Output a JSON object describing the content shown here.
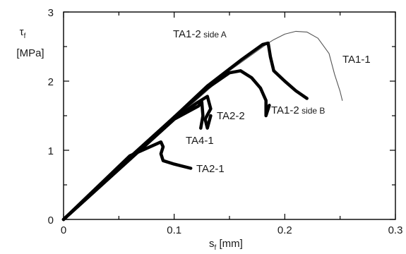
{
  "chart_data": {
    "type": "line",
    "title": "",
    "xlabel": {
      "main": "s",
      "sub": "f",
      "unit": " [mm]"
    },
    "ylabel": {
      "main": "τ",
      "sub": "f",
      "unit": "[MPa]"
    },
    "xlim": [
      0,
      0.3
    ],
    "ylim": [
      0,
      3
    ],
    "xticks": [
      {
        "value": 0,
        "label": "0"
      },
      {
        "value": 0.1,
        "label": "0.1"
      },
      {
        "value": 0.2,
        "label": "0.2"
      },
      {
        "value": 0.3,
        "label": "0.3"
      }
    ],
    "yticks": [
      {
        "value": 0,
        "label": "0"
      },
      {
        "value": 1,
        "label": "1"
      },
      {
        "value": 2,
        "label": "2"
      },
      {
        "value": 3,
        "label": "3"
      }
    ],
    "grid": false,
    "legend": "none",
    "series": [
      {
        "name": "TA1-1",
        "style": "thin",
        "color": "#555555",
        "points": [
          [
            0,
            0
          ],
          [
            0.09,
            1.3
          ],
          [
            0.15,
            2.15
          ],
          [
            0.185,
            2.55
          ],
          [
            0.19,
            2.6
          ],
          [
            0.2,
            2.68
          ],
          [
            0.21,
            2.72
          ],
          [
            0.22,
            2.71
          ],
          [
            0.23,
            2.62
          ],
          [
            0.24,
            2.4
          ],
          [
            0.245,
            2.1
          ],
          [
            0.25,
            1.85
          ],
          [
            0.252,
            1.72
          ]
        ]
      },
      {
        "name": "TA1-2 side A",
        "style": "thick",
        "color": "#000000",
        "points": [
          [
            0,
            0
          ],
          [
            0.06,
            0.9
          ],
          [
            0.1,
            1.48
          ],
          [
            0.13,
            1.93
          ],
          [
            0.16,
            2.3
          ],
          [
            0.18,
            2.53
          ],
          [
            0.185,
            2.55
          ],
          [
            0.187,
            2.35
          ],
          [
            0.19,
            2.15
          ],
          [
            0.2,
            2.0
          ],
          [
            0.21,
            1.86
          ],
          [
            0.22,
            1.75
          ]
        ]
      },
      {
        "name": "TA1-2 side B",
        "style": "thick",
        "color": "#000000",
        "points": [
          [
            0,
            0
          ],
          [
            0.1,
            1.48
          ],
          [
            0.13,
            1.9
          ],
          [
            0.15,
            2.12
          ],
          [
            0.16,
            2.15
          ],
          [
            0.17,
            2.05
          ],
          [
            0.178,
            1.9
          ],
          [
            0.183,
            1.72
          ],
          [
            0.183,
            1.5
          ],
          [
            0.186,
            1.65
          ]
        ]
      },
      {
        "name": "TA2-2",
        "style": "thick",
        "color": "#000000",
        "points": [
          [
            0,
            0
          ],
          [
            0.1,
            1.45
          ],
          [
            0.12,
            1.68
          ],
          [
            0.13,
            1.78
          ],
          [
            0.133,
            1.6
          ],
          [
            0.128,
            1.45
          ],
          [
            0.13,
            1.32
          ],
          [
            0.133,
            1.5
          ]
        ]
      },
      {
        "name": "TA4-1",
        "style": "thick",
        "color": "#000000",
        "points": [
          [
            0,
            0
          ],
          [
            0.1,
            1.45
          ],
          [
            0.122,
            1.64
          ],
          [
            0.125,
            1.7
          ],
          [
            0.126,
            1.5
          ],
          [
            0.124,
            1.32
          ]
        ]
      },
      {
        "name": "TA2-1",
        "style": "thick",
        "color": "#000000",
        "points": [
          [
            0,
            0
          ],
          [
            0.06,
            0.92
          ],
          [
            0.088,
            1.12
          ],
          [
            0.09,
            1.05
          ],
          [
            0.088,
            0.95
          ],
          [
            0.09,
            0.85
          ],
          [
            0.1,
            0.8
          ],
          [
            0.115,
            0.74
          ]
        ]
      }
    ],
    "annotations": [
      {
        "series": "TA1-2 side A",
        "main": "TA1-2",
        "small": "side A"
      },
      {
        "series": "TA1-1",
        "main": "TA1-1",
        "small": ""
      },
      {
        "series": "TA1-2 side B",
        "main": "TA1-2",
        "small": "side B"
      },
      {
        "series": "TA2-2",
        "main": "TA2-2",
        "small": ""
      },
      {
        "series": "TA4-1",
        "main": "TA4-1",
        "small": ""
      },
      {
        "series": "TA2-1",
        "main": "TA2-1",
        "small": ""
      }
    ]
  }
}
